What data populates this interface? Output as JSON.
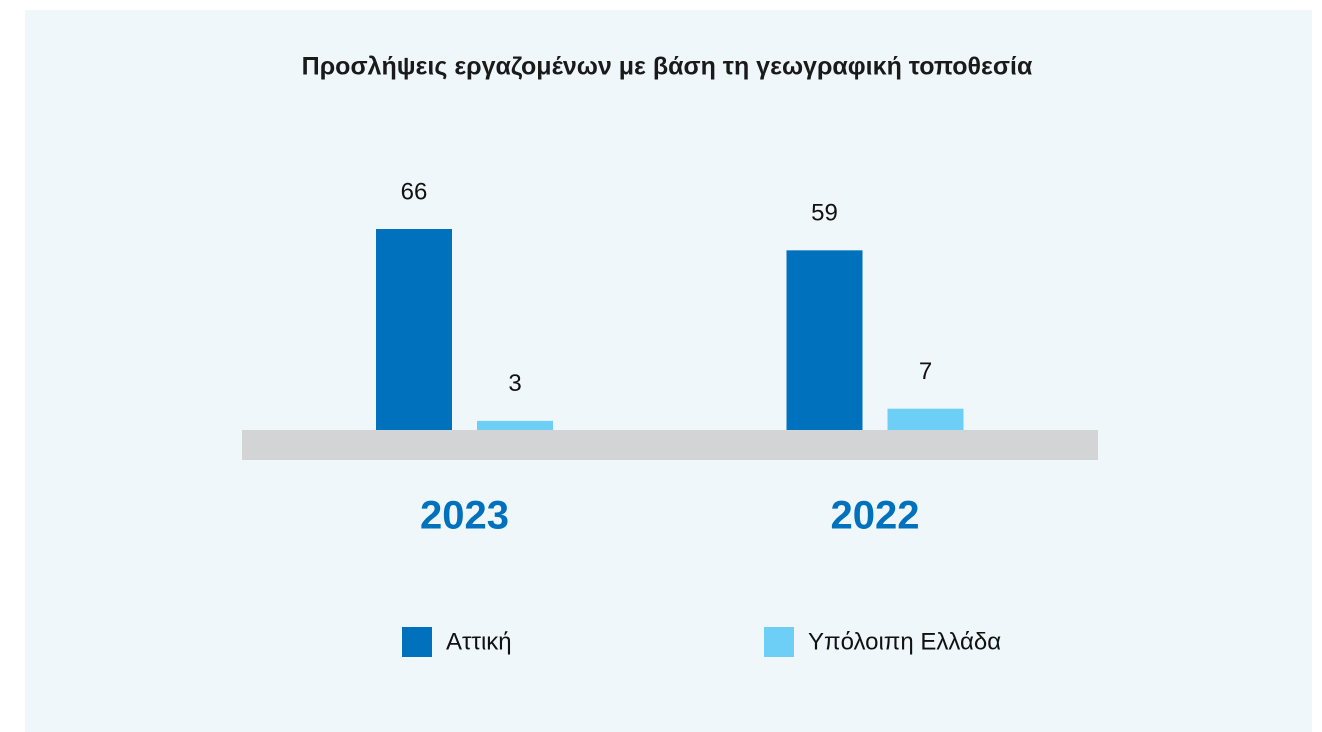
{
  "chart_data": {
    "type": "bar",
    "title": "Προσλήψεις εργαζομένων με βάση τη γεωγραφική τοποθεσία",
    "categories": [
      "2023",
      "2022"
    ],
    "series": [
      {
        "name": "Αττική",
        "color": "#0071bc",
        "values": [
          66,
          59
        ]
      },
      {
        "name": "Υπόλοιπη Ελλάδα",
        "color": "#6dcff6",
        "values": [
          3,
          7
        ]
      }
    ],
    "legend": "bottom"
  }
}
